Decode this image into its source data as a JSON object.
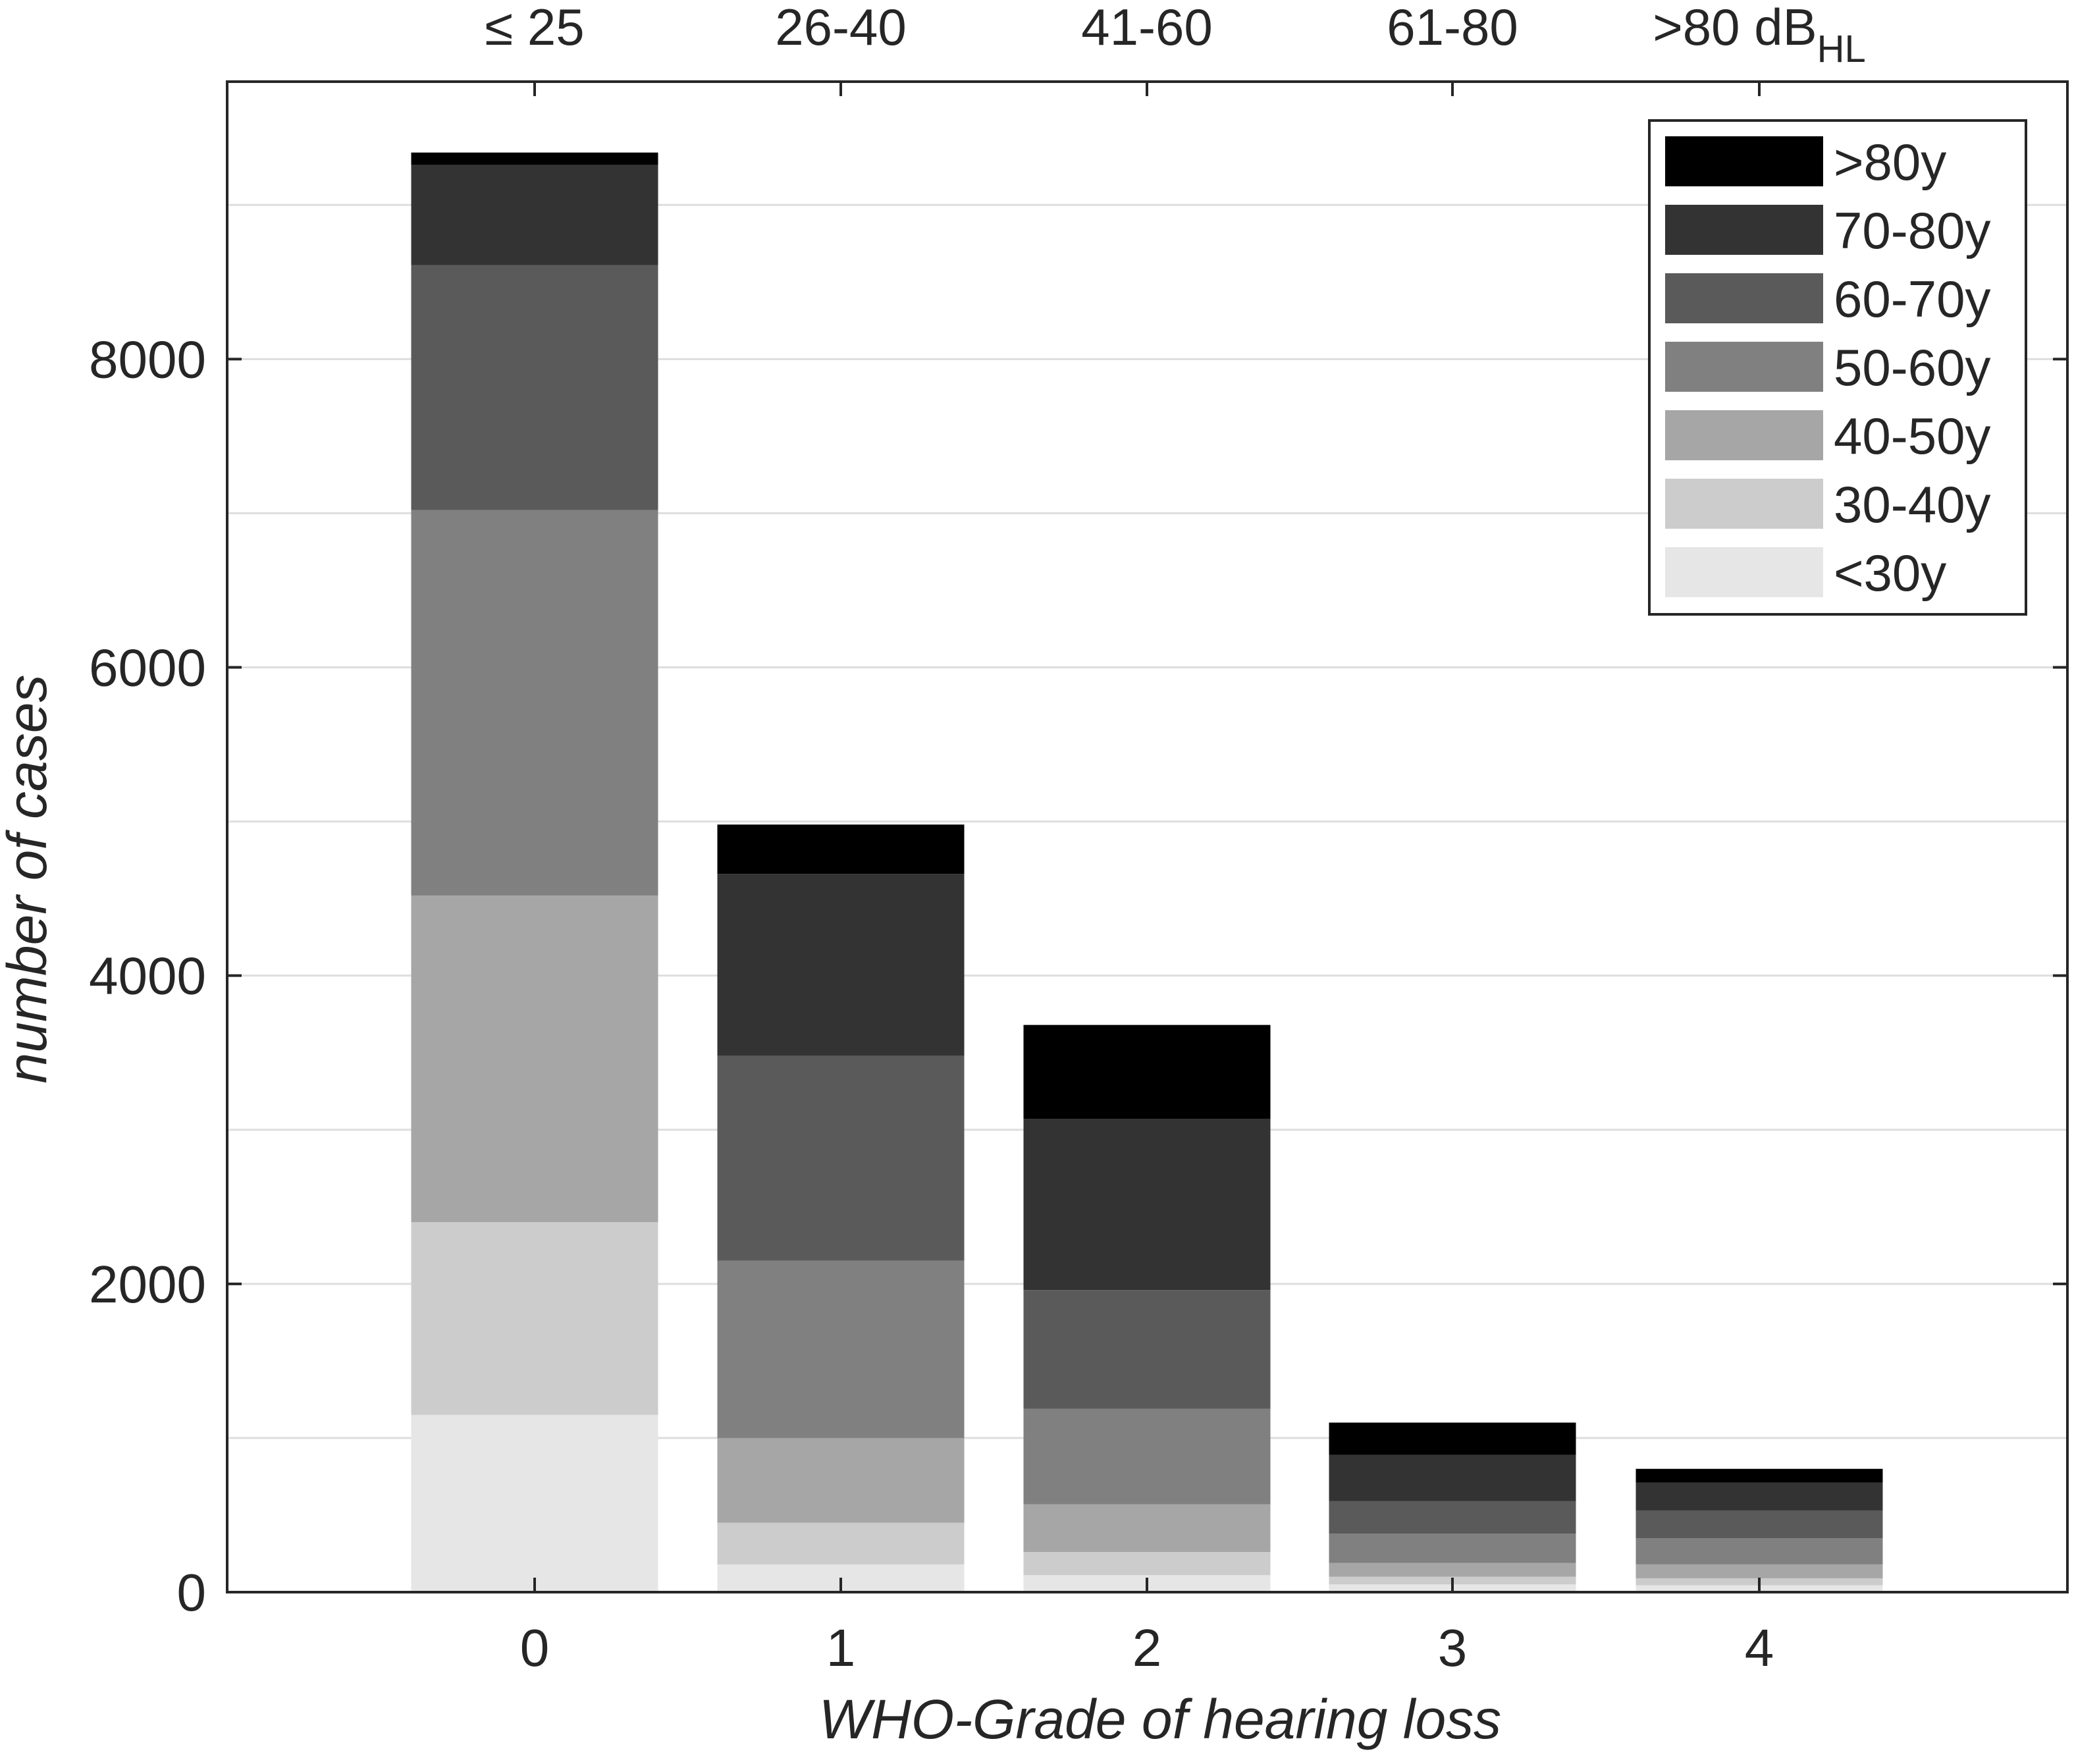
{
  "chart_data": {
    "type": "bar",
    "stacked": true,
    "xlabel": "WHO-Grade of hearing loss",
    "ylabel": "number of cases",
    "categories": [
      "0",
      "1",
      "2",
      "3",
      "4"
    ],
    "top_axis_labels": [
      "≤ 25",
      "26-40",
      "41-60",
      "61-80",
      ">80 dB"
    ],
    "top_axis_unit_subscript": "HL",
    "ylim": [
      0,
      9800
    ],
    "yticks": [
      0,
      2000,
      4000,
      6000,
      8000
    ],
    "ytick_labels": [
      "0",
      "2000",
      "4000",
      "6000",
      "8000"
    ],
    "minor_gridlines": [
      1000,
      3000,
      5000,
      7000,
      9000
    ],
    "grid": true,
    "legend_position": "top-right",
    "series": [
      {
        "name": "<30y",
        "color": "#e6e6e6",
        "values": [
          1150,
          180,
          110,
          50,
          45
        ]
      },
      {
        "name": "30-40y",
        "color": "#cccccc",
        "values": [
          1250,
          270,
          150,
          50,
          45
        ]
      },
      {
        "name": "40-50y",
        "color": "#a6a6a6",
        "values": [
          2120,
          550,
          310,
          90,
          90
        ]
      },
      {
        "name": "50-60y",
        "color": "#808080",
        "values": [
          2500,
          1150,
          620,
          190,
          170
        ]
      },
      {
        "name": "60-70y",
        "color": "#5a5a5a",
        "values": [
          1590,
          1330,
          770,
          210,
          180
        ]
      },
      {
        "name": "70-80y",
        "color": "#333333",
        "values": [
          650,
          1180,
          1110,
          300,
          180
        ]
      },
      {
        "name": ">80y",
        "color": "#000000",
        "values": [
          80,
          320,
          610,
          210,
          90
        ]
      }
    ]
  }
}
